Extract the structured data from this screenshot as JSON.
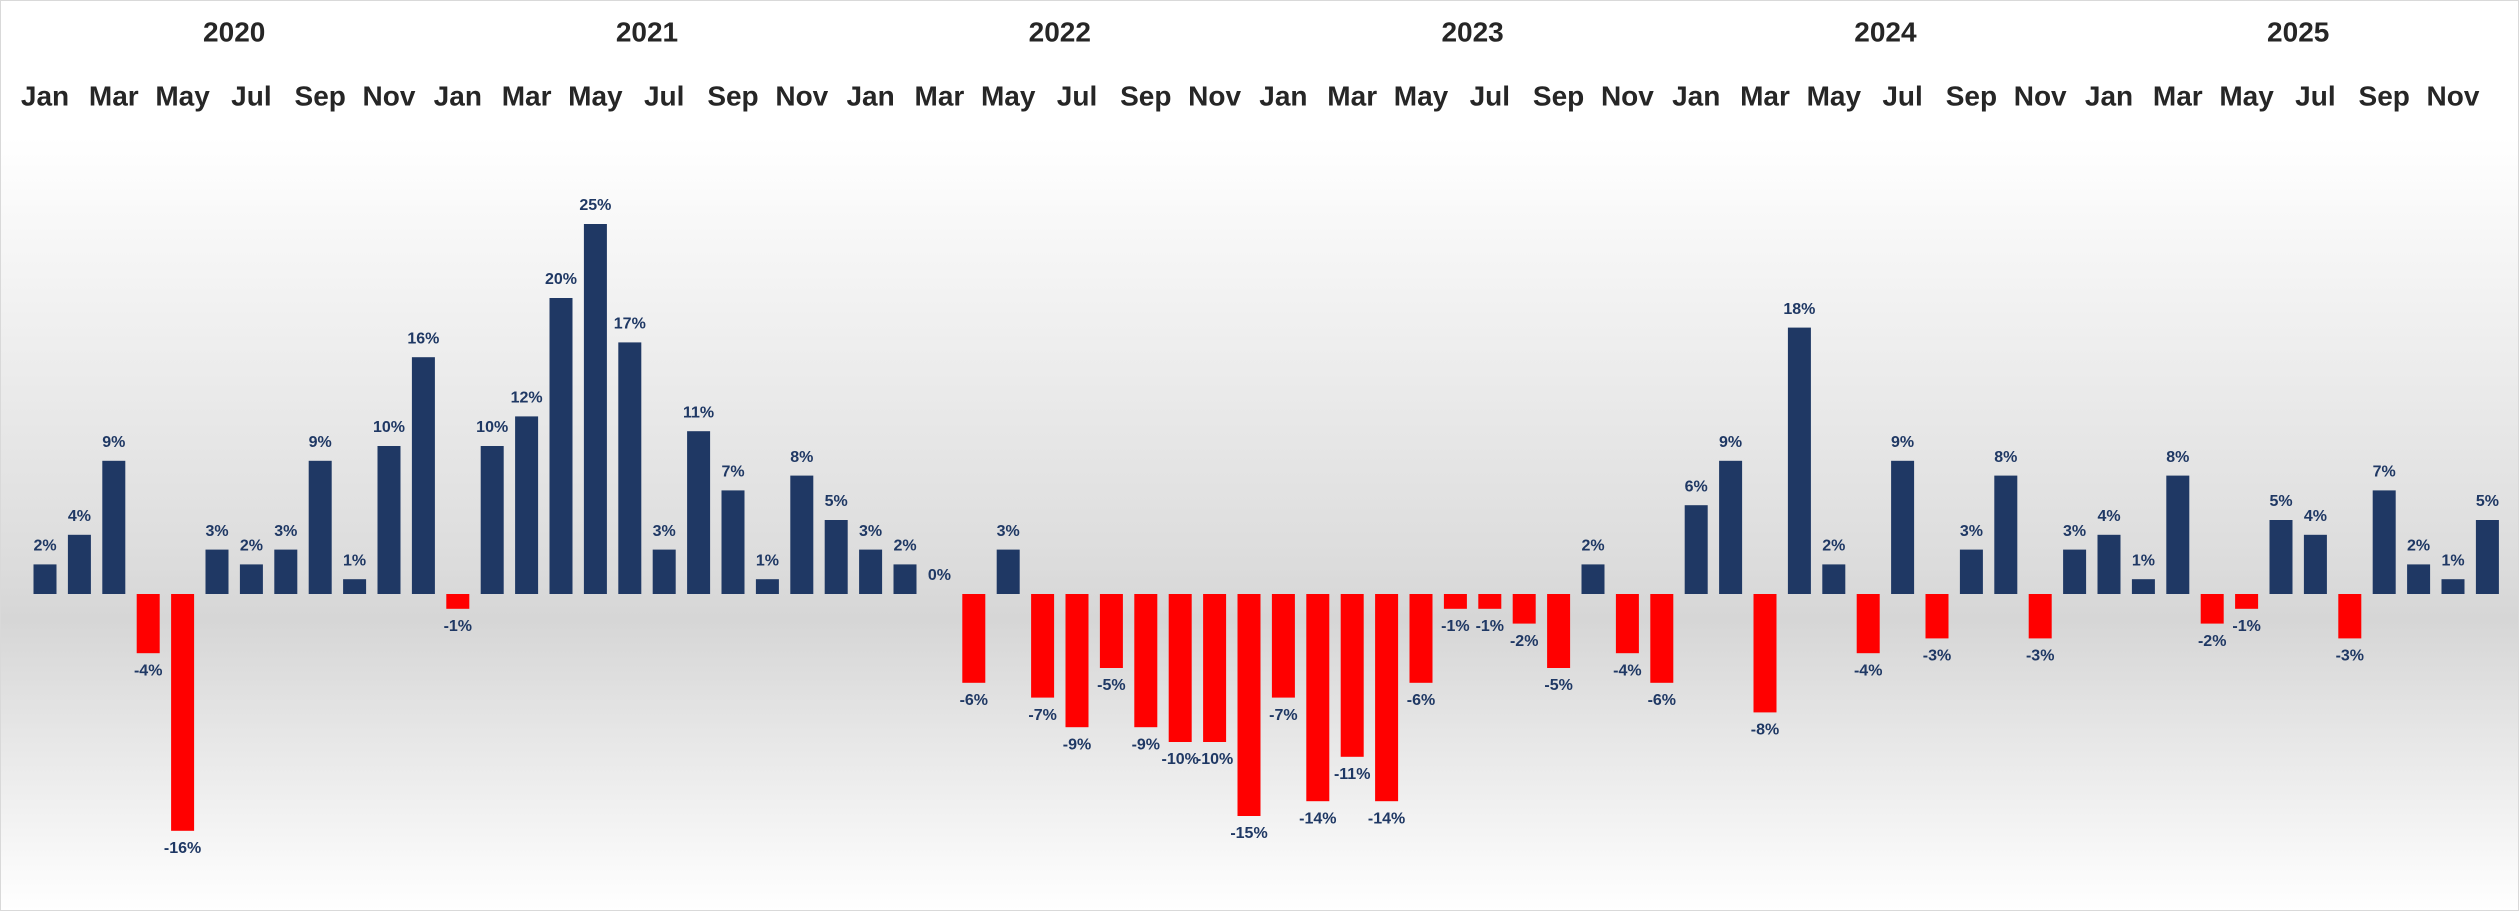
{
  "chart_data": {
    "type": "bar",
    "years": [
      "2020",
      "2021",
      "2022",
      "2023",
      "2024",
      "2025"
    ],
    "categories": [
      "Jan",
      null,
      "Mar",
      null,
      "May",
      null,
      "Jul",
      null,
      "Sep",
      null,
      "Nov",
      null,
      "Jan",
      null,
      "Mar",
      null,
      "May",
      null,
      "Jul",
      null,
      "Sep",
      null,
      "Nov",
      null,
      "Jan",
      null,
      "Mar",
      null,
      "May",
      null,
      "Jul",
      null,
      "Sep",
      null,
      "Nov",
      null,
      "Jan",
      null,
      "Mar",
      null,
      "May",
      null,
      "Jul",
      null,
      "Sep",
      null,
      "Nov",
      null,
      "Jan",
      null,
      "Mar",
      null,
      "May",
      null,
      "Jul",
      null,
      "Sep",
      null,
      "Nov",
      null,
      "Jan",
      null,
      "Mar",
      null,
      "May",
      null,
      "Jul",
      null,
      "Sep",
      null,
      "Nov",
      null
    ],
    "values": [
      2,
      4,
      9,
      -4,
      -16,
      3,
      2,
      3,
      9,
      1,
      10,
      16,
      -1,
      10,
      12,
      20,
      25,
      17,
      3,
      11,
      7,
      1,
      8,
      5,
      3,
      2,
      0,
      -6,
      3,
      -7,
      -9,
      -5,
      -9,
      -10,
      -10,
      -15,
      -7,
      -14,
      -11,
      -14,
      -6,
      -1,
      -1,
      -2,
      -5,
      2,
      -4,
      -6,
      6,
      9,
      -8,
      18,
      2,
      -4,
      9,
      -3,
      3,
      8,
      -3,
      3,
      4,
      1,
      8,
      -2,
      -1,
      5,
      4,
      -3,
      7,
      2,
      1,
      5
    ],
    "value_labels": [
      "2%",
      "4%",
      "9%",
      "-4%",
      "-16%",
      "3%",
      "2%",
      "3%",
      "9%",
      "1%",
      "10%",
      "16%",
      "-1%",
      "10%",
      "12%",
      "20%",
      "25%",
      "17%",
      "3%",
      "11%",
      "7%",
      "1%",
      "8%",
      "5%",
      "3%",
      "2%",
      "0%",
      "-6%",
      "3%",
      "-7%",
      "-9%",
      "-5%",
      "-9%",
      "-10%",
      "-10%",
      "-15%",
      "-7%",
      "-14%",
      "-11%",
      "-14%",
      "-6%",
      "-1%",
      "-1%",
      "-2%",
      "-5%",
      "2%",
      "-4%",
      "-6%",
      "6%",
      "9%",
      "-8%",
      "18%",
      "2%",
      "-4%",
      "9%",
      "-3%",
      "3%",
      "8%",
      "-3%",
      "3%",
      "4%",
      "1%",
      "8%",
      "-2%",
      "-1%",
      "5%",
      "4%",
      "-3%",
      "7%",
      "2%",
      "1%",
      "5%"
    ],
    "positive_color": "#1f3864",
    "negative_color": "#ff0000",
    "ylim": [
      -20,
      30
    ]
  }
}
